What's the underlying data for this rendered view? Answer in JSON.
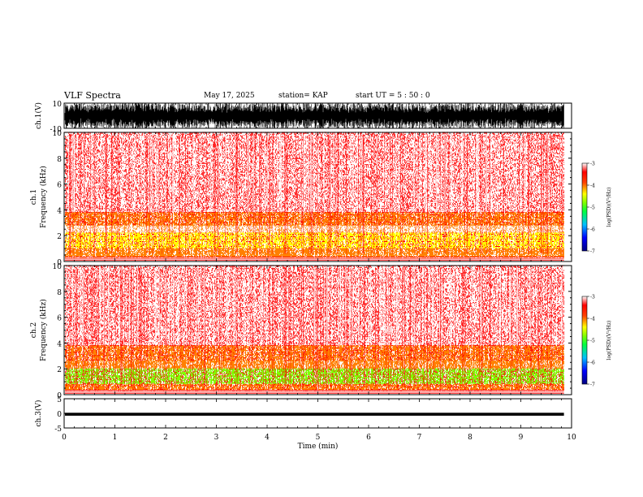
{
  "header": {
    "title": "VLF Spectra",
    "date": "May 17, 2025",
    "station": "station= KAP",
    "start_ut": "start  UT  =   5  : 50 : 0"
  },
  "chart_data": [
    {
      "type": "line",
      "panel": "ch1-waveform",
      "ylabel": "ch.1(V)",
      "ylim": [
        -10,
        10
      ],
      "yticks": [
        "10",
        "-10"
      ],
      "description_series": "dense black waveform spanning nearly full amplitude",
      "x_range_min": [
        0,
        9.85
      ]
    },
    {
      "type": "heatmap",
      "panel": "ch1-spectrogram",
      "ylabel": "ch.1\nFrequency  (kHz)",
      "ylim": [
        0,
        10
      ],
      "yticks": [
        "0",
        "2",
        "4",
        "6",
        "8",
        "10"
      ],
      "xlim": [
        0,
        10
      ],
      "bands": [
        {
          "from_khz": 0.3,
          "to_khz": 1.0,
          "level": -3.8
        },
        {
          "from_khz": 1.0,
          "to_khz": 2.2,
          "level": -4.3
        },
        {
          "from_khz": 2.2,
          "to_khz": 2.8,
          "level": -3.7
        },
        {
          "from_khz": 2.8,
          "to_khz": 3.8,
          "level": -4.2
        },
        {
          "from_khz": 3.8,
          "to_khz": 10.0,
          "level": -3.6
        }
      ],
      "colorbar": {
        "label": "log(PSD)(V²/Hz)",
        "ticks": [
          "-3",
          "-4",
          "-5",
          "-6",
          "-7"
        ]
      }
    },
    {
      "type": "heatmap",
      "panel": "ch2-spectrogram",
      "ylabel": "ch.2\nFrequency  (kHz)",
      "ylim": [
        0,
        10
      ],
      "yticks": [
        "0",
        "2",
        "4",
        "6",
        "8",
        "10"
      ],
      "xlim": [
        0,
        10
      ],
      "bands": [
        {
          "from_khz": 0.3,
          "to_khz": 0.8,
          "level": -4.0
        },
        {
          "from_khz": 0.8,
          "to_khz": 2.0,
          "level": -4.9
        },
        {
          "from_khz": 2.0,
          "to_khz": 2.6,
          "level": -3.8
        },
        {
          "from_khz": 2.6,
          "to_khz": 3.8,
          "level": -4.2
        },
        {
          "from_khz": 3.8,
          "to_khz": 10.0,
          "level": -3.6
        }
      ],
      "colorbar": {
        "label": "log(PSD)(V²/Hz)",
        "ticks": [
          "-3",
          "-4",
          "-5",
          "-6",
          "-7"
        ]
      }
    },
    {
      "type": "line",
      "panel": "ch3-waveform",
      "ylabel": "ch.3(V)",
      "ylim": [
        -5,
        5
      ],
      "yticks": [
        "5",
        "0",
        "-5"
      ],
      "band_v": [
        -0.8,
        0.2
      ],
      "x_range_min": [
        0,
        9.85
      ]
    }
  ],
  "x_axis": {
    "label": "Time  (min)",
    "ticks": [
      "0",
      "1",
      "2",
      "3",
      "4",
      "5",
      "6",
      "7",
      "8",
      "9",
      "10"
    ]
  },
  "colors": {
    "red": "#ff0000",
    "yellow": "#ffff00",
    "green": "#00ff00",
    "cyan": "#00ffff",
    "blue": "#0000ff"
  }
}
